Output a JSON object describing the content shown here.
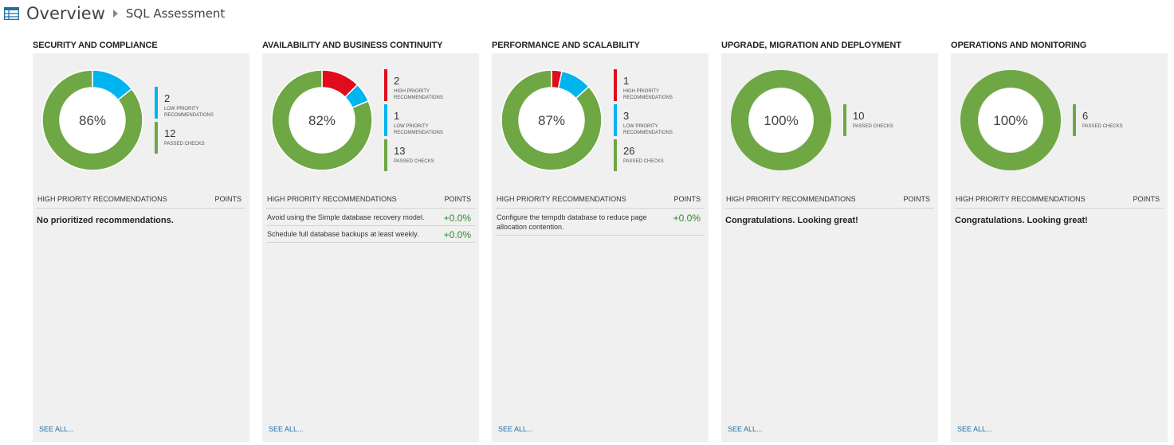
{
  "header": {
    "title": "Overview",
    "breadcrumb": "SQL Assessment"
  },
  "colors": {
    "high": "#e00b1c",
    "low": "#00b4f0",
    "passed": "#6ea744",
    "link": "#1e6fa8"
  },
  "tiles": [
    {
      "heading": "SECURITY AND COMPLIANCE",
      "percent": "86%",
      "segments": [
        {
          "kind": "low",
          "count": 2
        },
        {
          "kind": "passed",
          "count": 12
        }
      ],
      "legend": [
        {
          "kind": "low",
          "count": "2",
          "label": "LOW PRIORITY RECOMMENDATIONS"
        },
        {
          "kind": "passed",
          "count": "12",
          "label": "PASSED CHECKS"
        }
      ],
      "rec_header": "HIGH PRIORITY RECOMMENDATIONS",
      "points_header": "POINTS",
      "recommendations": [],
      "status_message": "No prioritized recommendations.",
      "see_all": "SEE ALL..."
    },
    {
      "heading": "AVAILABILITY AND BUSINESS CONTINUITY",
      "percent": "82%",
      "segments": [
        {
          "kind": "high",
          "count": 2
        },
        {
          "kind": "low",
          "count": 1
        },
        {
          "kind": "passed",
          "count": 13
        }
      ],
      "legend": [
        {
          "kind": "high",
          "count": "2",
          "label": "HIGH PRIORITY RECOMMENDATIONS"
        },
        {
          "kind": "low",
          "count": "1",
          "label": "LOW PRIORITY RECOMMENDATIONS"
        },
        {
          "kind": "passed",
          "count": "13",
          "label": "PASSED CHECKS"
        }
      ],
      "rec_header": "HIGH PRIORITY RECOMMENDATIONS",
      "points_header": "POINTS",
      "recommendations": [
        {
          "text": "Avoid using the Simple database recovery model.",
          "points": "+0.0%"
        },
        {
          "text": "Schedule full database backups at least weekly.",
          "points": "+0.0%"
        }
      ],
      "status_message": "",
      "see_all": "SEE ALL..."
    },
    {
      "heading": "PERFORMANCE AND SCALABILITY",
      "percent": "87%",
      "segments": [
        {
          "kind": "high",
          "count": 1
        },
        {
          "kind": "low",
          "count": 3
        },
        {
          "kind": "passed",
          "count": 26
        }
      ],
      "legend": [
        {
          "kind": "high",
          "count": "1",
          "label": "HIGH PRIORITY RECOMMENDATIONS"
        },
        {
          "kind": "low",
          "count": "3",
          "label": "LOW PRIORITY RECOMMENDATIONS"
        },
        {
          "kind": "passed",
          "count": "26",
          "label": "PASSED CHECKS"
        }
      ],
      "rec_header": "HIGH PRIORITY RECOMMENDATIONS",
      "points_header": "POINTS",
      "recommendations": [
        {
          "text": "Configure the tempdb database to reduce page allocation contention.",
          "points": "+0.0%"
        }
      ],
      "status_message": "",
      "see_all": "SEE ALL..."
    },
    {
      "heading": "UPGRADE, MIGRATION AND DEPLOYMENT",
      "percent": "100%",
      "segments": [
        {
          "kind": "passed",
          "count": 10
        }
      ],
      "legend": [
        {
          "kind": "passed",
          "count": "10",
          "label": "PASSED CHECKS"
        }
      ],
      "rec_header": "HIGH PRIORITY RECOMMENDATIONS",
      "points_header": "POINTS",
      "recommendations": [],
      "status_message": "Congratulations. Looking great!",
      "see_all": "SEE ALL..."
    },
    {
      "heading": "OPERATIONS AND MONITORING",
      "percent": "100%",
      "segments": [
        {
          "kind": "passed",
          "count": 6
        }
      ],
      "legend": [
        {
          "kind": "passed",
          "count": "6",
          "label": "PASSED CHECKS"
        }
      ],
      "rec_header": "HIGH PRIORITY RECOMMENDATIONS",
      "points_header": "POINTS",
      "recommendations": [],
      "status_message": "Congratulations. Looking great!",
      "see_all": "SEE ALL..."
    }
  ]
}
